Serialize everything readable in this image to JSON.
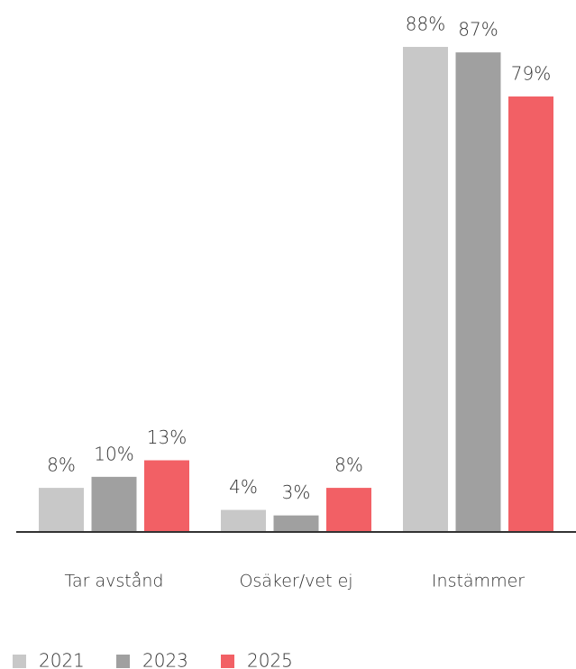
{
  "chart_data": {
    "type": "bar",
    "categories": [
      "Tar avstånd",
      "Osäker/vet ej",
      "Instämmer"
    ],
    "series": [
      {
        "name": "2021",
        "color": "#c8c8c8",
        "values": [
          8,
          4,
          88
        ],
        "value_labels": [
          "8%",
          "4%",
          "88%"
        ]
      },
      {
        "name": "2023",
        "color": "#a0a0a0",
        "values": [
          10,
          3,
          87
        ],
        "value_labels": [
          "10%",
          "3%",
          "87%"
        ]
      },
      {
        "name": "2025",
        "color": "#f26065",
        "values": [
          13,
          8,
          79
        ],
        "value_labels": [
          "13%",
          "8%",
          "79%"
        ]
      }
    ],
    "legend": "bottom-left"
  }
}
